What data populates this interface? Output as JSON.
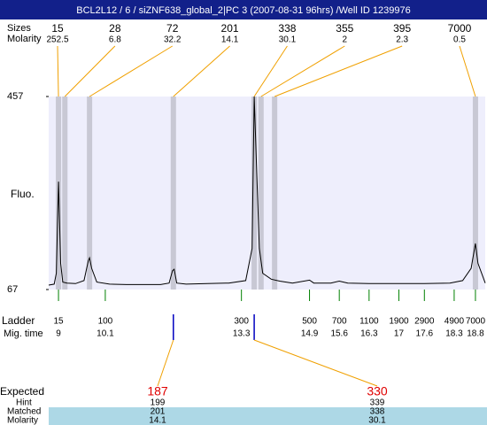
{
  "chart_data": {
    "type": "line",
    "title": "BCL2L12 / 6 / siZNF638_global_2|PC 3 (2007-08-31 96hrs) /Well ID 1239976",
    "ylabel": "Fluo.",
    "xlim": [
      8.77,
      19.03
    ],
    "ylim": [
      67,
      457
    ],
    "yticks": [
      67,
      457
    ],
    "x": [
      8.77,
      8.9,
      8.95,
      9.0,
      9.05,
      9.1,
      9.2,
      9.4,
      9.6,
      9.7,
      9.73,
      9.78,
      9.9,
      10.2,
      10.6,
      11.0,
      11.4,
      11.6,
      11.68,
      11.72,
      11.78,
      12.0,
      12.5,
      13.0,
      13.4,
      13.55,
      13.6,
      13.66,
      13.72,
      13.8,
      14.0,
      14.2,
      14.5,
      14.9,
      15.0,
      15.4,
      15.6,
      15.8,
      16.3,
      17.0,
      17.6,
      18.2,
      18.5,
      18.7,
      18.8,
      18.86,
      19.03
    ],
    "series": [
      {
        "name": "Fluo.",
        "color": "#000000",
        "values": [
          76,
          78,
          100,
          285,
          120,
          82,
          80,
          79,
          85,
          125,
          131,
          110,
          82,
          78,
          77,
          77,
          77,
          80,
          105,
          108,
          80,
          78,
          79,
          80,
          85,
          150,
          457,
          300,
          150,
          100,
          88,
          84,
          80,
          86,
          80,
          80,
          84,
          80,
          79,
          79,
          79,
          80,
          85,
          110,
          160,
          120,
          80
        ]
      }
    ],
    "peak_header": "Sizes",
    "molarity_header": "Molarity",
    "peaks": {
      "sizes": [
        15,
        28,
        72,
        201,
        338,
        355,
        395,
        7000
      ],
      "molarity": [
        252.5,
        6.8,
        32.2,
        14.1,
        30.1,
        2,
        2.3,
        0.5
      ],
      "times": [
        9.0,
        9.15,
        9.73,
        11.7,
        13.6,
        13.76,
        14.08,
        18.8
      ]
    },
    "ladder_label": "Ladder",
    "migtime_label": "Mig. time",
    "ladder": {
      "sizes": [
        15,
        100,
        300,
        500,
        700,
        1100,
        1900,
        2900,
        4900,
        7000
      ],
      "times": [
        9,
        10.1,
        13.3,
        14.9,
        15.6,
        16.3,
        17,
        17.6,
        18.3,
        18.8
      ]
    },
    "expected_label": "Expected",
    "hint_label": "Hint",
    "matched_label": "Matched",
    "molarity_row_label": "Molarity",
    "expected": {
      "sizes": [
        187,
        330
      ],
      "hint": [
        199,
        339
      ],
      "matched": [
        201,
        338
      ],
      "molarity": [
        14.1,
        30.1
      ]
    }
  }
}
